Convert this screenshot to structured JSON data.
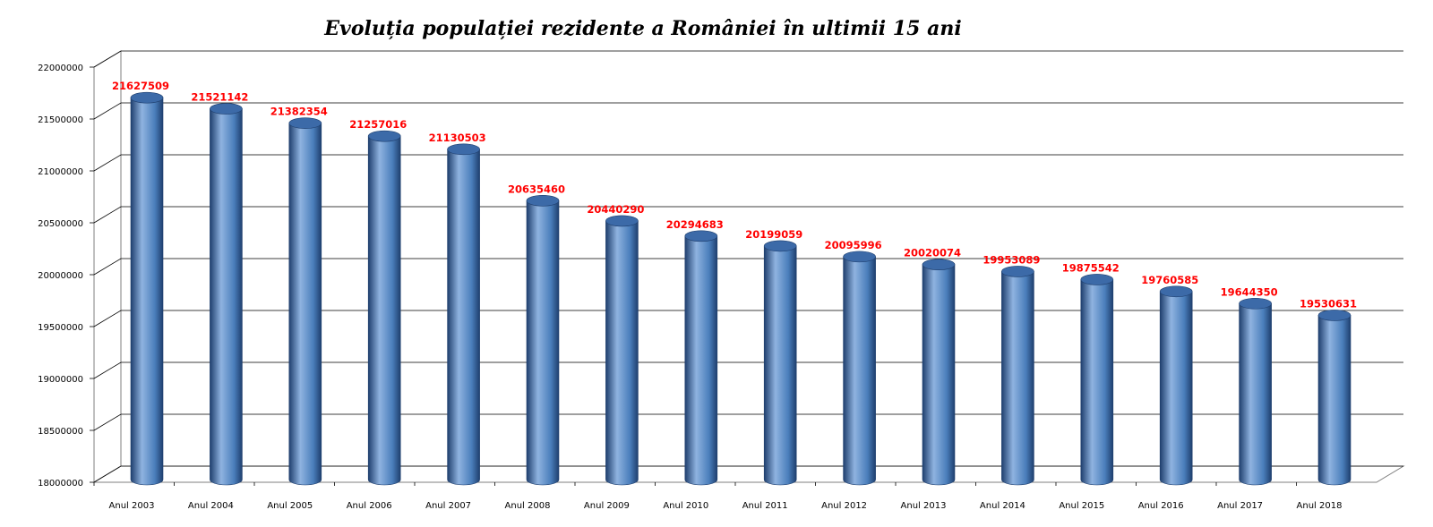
{
  "chart_data": {
    "type": "bar",
    "style": "3d-cylinder",
    "title": "Evoluția populației rezidente a României în ultimii 15 ani",
    "xlabel": "",
    "ylabel": "",
    "categories": [
      "Anul 2003",
      "Anul 2004",
      "Anul 2005",
      "Anul 2006",
      "Anul 2007",
      "Anul 2008",
      "Anul 2009",
      "Anul 2010",
      "Anul 2011",
      "Anul 2012",
      "Anul 2013",
      "Anul 2014",
      "Anul 2015",
      "Anul 2016",
      "Anul 2017",
      "Anul 2018"
    ],
    "values": [
      21627509,
      21521142,
      21382354,
      21257016,
      21130503,
      20635460,
      20440290,
      20294683,
      20199059,
      20095996,
      20020074,
      19953089,
      19875542,
      19760585,
      19644350,
      19530631
    ],
    "data_labels": [
      "21627509",
      "21521142",
      "21382354",
      "21257016",
      "21130503",
      "20635460",
      "20440290",
      "20294683",
      "20199059",
      "20095996",
      "20020074",
      "19953089",
      "19875542",
      "19760585",
      "19644350",
      "19530631"
    ],
    "ylim": [
      18000000,
      22000000
    ],
    "yticks": [
      18000000,
      18500000,
      19000000,
      19500000,
      20000000,
      20500000,
      21000000,
      21500000,
      22000000
    ],
    "ytick_labels": [
      "18000000",
      "18500000",
      "19000000",
      "19500000",
      "20000000",
      "20500000",
      "21000000",
      "21500000",
      "22000000"
    ],
    "grid": true,
    "legend": "none",
    "colors": {
      "bar_body": "#4a7ebb",
      "bar_highlight": "#8fb3e0",
      "bar_shadow": "#1f3f6e",
      "bar_top": "#3c6aa8",
      "data_label": "#ff0000",
      "gridline": "#000000",
      "wall": "#ffffff"
    }
  }
}
